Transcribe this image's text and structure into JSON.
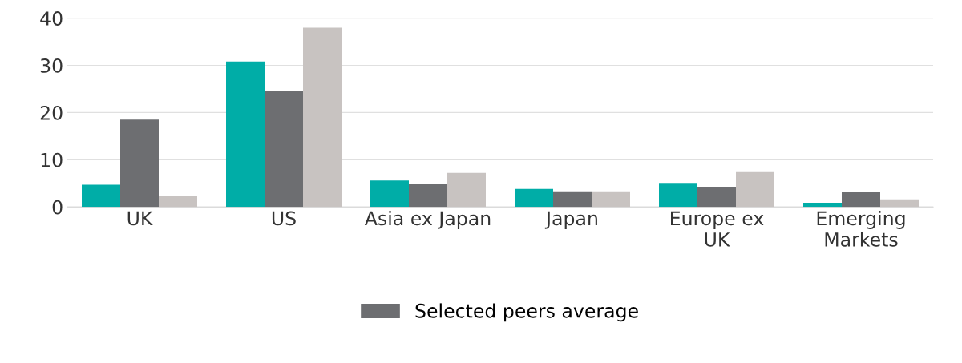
{
  "chart_data": {
    "type": "bar",
    "categories": [
      "UK",
      "US",
      "Asia ex Japan",
      "Japan",
      "Europe ex\nUK",
      "Emerging\nMarkets"
    ],
    "series": [
      {
        "color": "#00ada7",
        "values": [
          4.7,
          30.8,
          5.6,
          3.8,
          5.1,
          0.9
        ]
      },
      {
        "name": "Selected peers average",
        "color": "#6d6e71",
        "values": [
          18.5,
          24.6,
          4.9,
          3.3,
          4.3,
          3.1
        ]
      },
      {
        "color": "#c8c3c1",
        "values": [
          2.4,
          38.0,
          7.2,
          3.3,
          7.4,
          1.6
        ]
      }
    ],
    "ylim": [
      0,
      40
    ],
    "yticks": [
      0,
      10,
      20,
      30,
      40
    ],
    "grid": "y",
    "legend": "bottom"
  }
}
